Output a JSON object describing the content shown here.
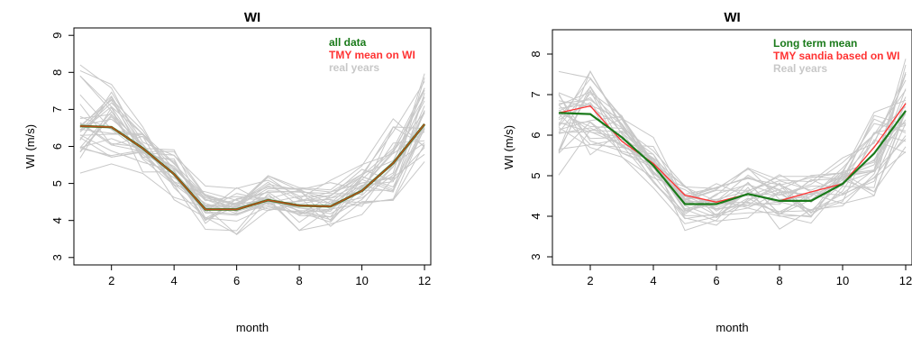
{
  "chart_data": [
    {
      "type": "line",
      "title": "WI",
      "xlabel": "month",
      "ylabel": "WI (m/s)",
      "xlim": [
        0.8,
        12.2
      ],
      "ylim": [
        2.8,
        9.2
      ],
      "xticks": [
        2,
        4,
        6,
        8,
        10,
        12
      ],
      "yticks": [
        3,
        4,
        5,
        6,
        7,
        8,
        9
      ],
      "grid": false,
      "legend_position": "top-right",
      "x": [
        1,
        2,
        3,
        4,
        5,
        6,
        7,
        8,
        9,
        10,
        11,
        12
      ],
      "series": [
        {
          "name": "all data",
          "color": "#1a7a1a",
          "values": [
            6.55,
            6.52,
            5.95,
            5.25,
            4.3,
            4.3,
            4.55,
            4.4,
            4.38,
            4.8,
            5.55,
            6.6
          ]
        },
        {
          "name": "TMY mean on WI",
          "color": "#ff3333",
          "values": [
            6.55,
            6.52,
            5.95,
            5.25,
            4.3,
            4.3,
            4.55,
            4.4,
            4.38,
            4.8,
            5.55,
            6.6
          ]
        }
      ],
      "background_series": {
        "name": "real years",
        "color": "#c8c8c8",
        "count": 30
      }
    },
    {
      "type": "line",
      "title": "WI",
      "xlabel": "month",
      "ylabel": "WI (m/s)",
      "xlim": [
        0.8,
        12.2
      ],
      "ylim": [
        2.8,
        8.6
      ],
      "xticks": [
        2,
        4,
        6,
        8,
        10,
        12
      ],
      "yticks": [
        3,
        4,
        5,
        6,
        7,
        8
      ],
      "grid": false,
      "legend_position": "top-right",
      "x": [
        1,
        2,
        3,
        4,
        5,
        6,
        7,
        8,
        9,
        10,
        11,
        12
      ],
      "series": [
        {
          "name": "Long term mean",
          "color": "#1a7a1a",
          "values": [
            6.55,
            6.52,
            5.95,
            5.25,
            4.3,
            4.3,
            4.55,
            4.38,
            4.38,
            4.8,
            5.55,
            6.6
          ]
        },
        {
          "name": "TMY sandia based on WI",
          "color": "#ff3333",
          "values": [
            6.55,
            6.72,
            5.85,
            5.3,
            4.52,
            4.35,
            4.55,
            4.38,
            4.6,
            4.8,
            5.7,
            6.78
          ]
        }
      ],
      "background_series": {
        "name": "Real years",
        "color": "#c8c8c8",
        "count": 30
      }
    }
  ]
}
